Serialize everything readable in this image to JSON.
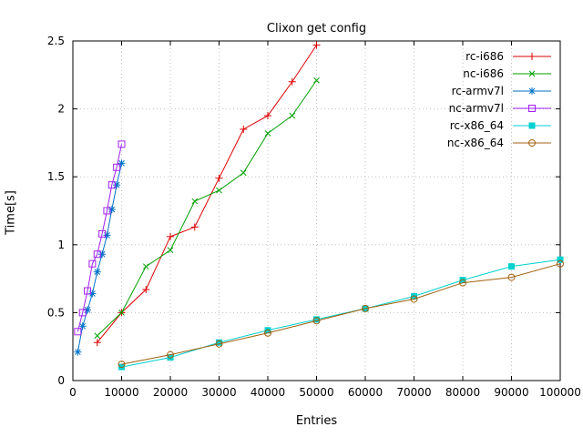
{
  "chart_data": {
    "type": "line",
    "title": "Clixon get config",
    "xlabel": "Entries",
    "ylabel": "Time[s]",
    "xlim": [
      0,
      100000
    ],
    "ylim": [
      0,
      2.5
    ],
    "xticks": [
      0,
      10000,
      20000,
      30000,
      40000,
      50000,
      60000,
      70000,
      80000,
      90000,
      100000
    ],
    "yticks": [
      0,
      0.5,
      1,
      1.5,
      2,
      2.5
    ],
    "grid": true,
    "legend_position": "top-right-inside",
    "background": "#ffffff",
    "grid_color": "#c0c0c0",
    "series": [
      {
        "name": "rc-i686",
        "color": "#dd0000",
        "marker": "plus",
        "x": [
          5000,
          10000,
          15000,
          20000,
          25000,
          30000,
          35000,
          40000,
          45000,
          50000
        ],
        "y": [
          0.28,
          0.5,
          0.67,
          1.06,
          1.13,
          1.49,
          1.85,
          1.95,
          2.2,
          2.47
        ]
      },
      {
        "name": "nc-i686",
        "color": "#00a000",
        "marker": "cross",
        "x": [
          5000,
          10000,
          15000,
          20000,
          25000,
          30000,
          35000,
          40000,
          45000,
          50000
        ],
        "y": [
          0.33,
          0.5,
          0.84,
          0.96,
          1.32,
          1.4,
          1.53,
          1.82,
          1.95,
          2.21
        ]
      },
      {
        "name": "rc-armv7l",
        "color": "#0072c8",
        "marker": "asterisk",
        "x": [
          1000,
          2000,
          3000,
          4000,
          5000,
          6000,
          7000,
          8000,
          9000,
          10000
        ],
        "y": [
          0.21,
          0.4,
          0.52,
          0.64,
          0.8,
          0.93,
          1.07,
          1.26,
          1.44,
          1.6
        ]
      },
      {
        "name": "nc-armv7l",
        "color": "#a020f0",
        "marker": "square-open",
        "x": [
          1000,
          2000,
          3000,
          4000,
          5000,
          6000,
          7000,
          8000,
          9000,
          10000
        ],
        "y": [
          0.36,
          0.5,
          0.66,
          0.86,
          0.93,
          1.08,
          1.25,
          1.44,
          1.57,
          1.74
        ]
      },
      {
        "name": "rc-x86_64",
        "color": "#00d0d0",
        "marker": "square-filled",
        "x": [
          10000,
          20000,
          30000,
          40000,
          50000,
          60000,
          70000,
          80000,
          90000,
          100000
        ],
        "y": [
          0.1,
          0.17,
          0.28,
          0.37,
          0.45,
          0.53,
          0.62,
          0.74,
          0.84,
          0.89
        ]
      },
      {
        "name": "nc-x86_64",
        "color": "#a06010",
        "marker": "circle-open",
        "x": [
          10000,
          20000,
          30000,
          40000,
          50000,
          60000,
          70000,
          80000,
          90000,
          100000
        ],
        "y": [
          0.12,
          0.19,
          0.27,
          0.35,
          0.44,
          0.53,
          0.6,
          0.72,
          0.76,
          0.86
        ]
      }
    ]
  }
}
